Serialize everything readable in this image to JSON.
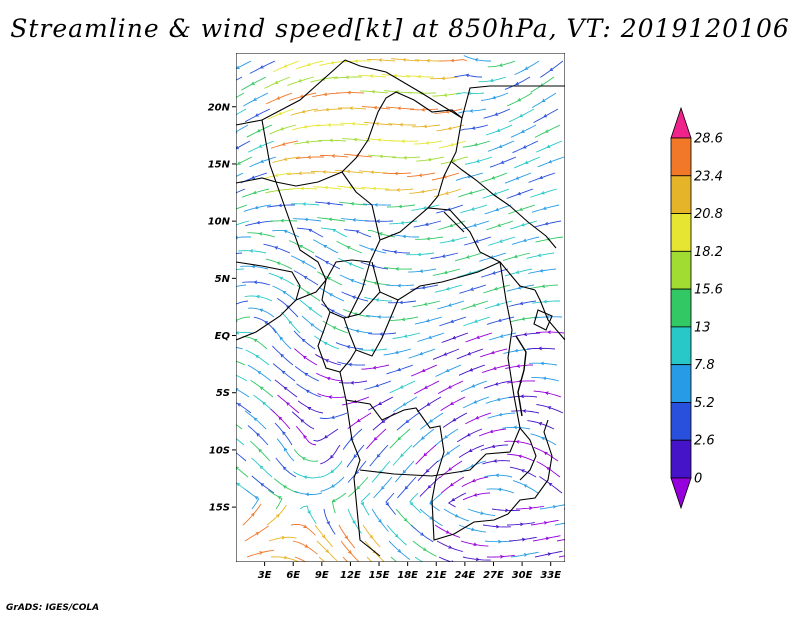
{
  "title": "Streamline & wind speed[kt] at 850hPa, VT: 2019120106",
  "footer": "GrADS: IGES/COLA",
  "map": {
    "lat_labels": [
      "20N",
      "15N",
      "10N",
      "5N",
      "EQ",
      "5S",
      "10S",
      "15S"
    ],
    "lat_values": [
      20,
      15,
      10,
      5,
      0,
      -5,
      -10,
      -15
    ],
    "lon_labels": [
      "3E",
      "6E",
      "9E",
      "12E",
      "15E",
      "18E",
      "21E",
      "24E",
      "27E",
      "30E",
      "33E"
    ],
    "lon_values": [
      3,
      6,
      9,
      12,
      15,
      18,
      21,
      24,
      27,
      30,
      33
    ],
    "lon_range": [
      0,
      34.5
    ],
    "lat_range": [
      -19.8,
      24.7
    ]
  },
  "colorbar": {
    "labels": [
      "28.6",
      "23.4",
      "20.8",
      "18.2",
      "15.6",
      "13",
      "7.8",
      "5.2",
      "2.6",
      "0"
    ],
    "colors": [
      "#f0238c",
      "#f07828",
      "#e6b428",
      "#e6e632",
      "#a0dc32",
      "#32c864",
      "#28c8c8",
      "#289be6",
      "#2850dc",
      "#4614c8",
      "#9600dc"
    ]
  }
}
